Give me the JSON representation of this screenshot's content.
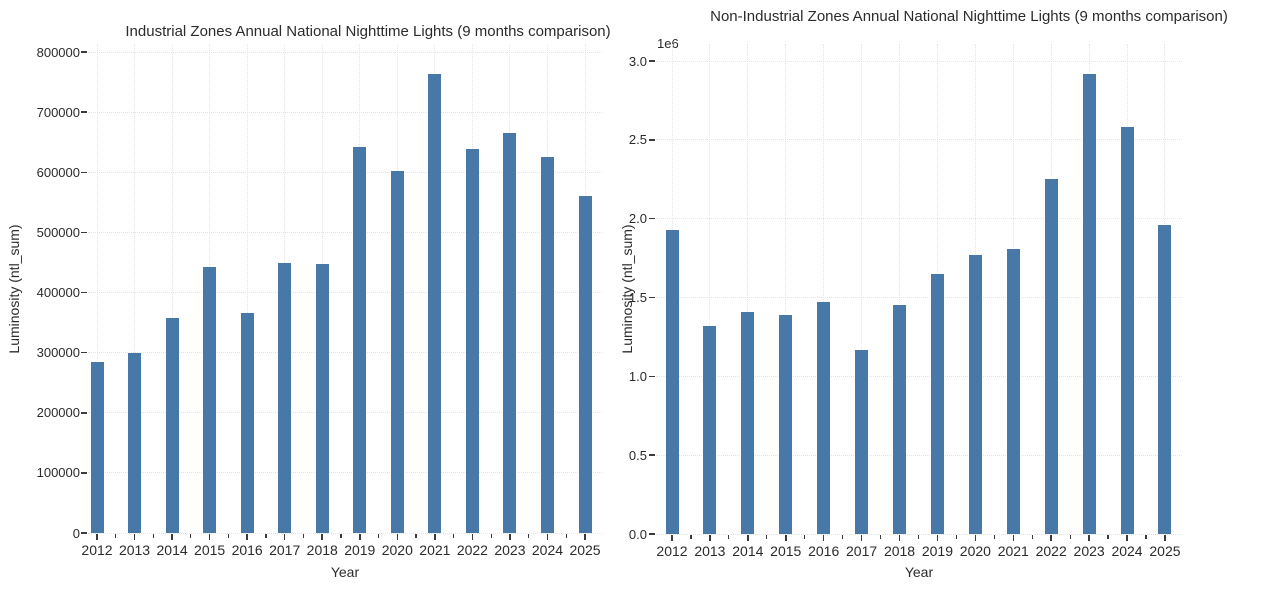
{
  "colors": {
    "background": "#ffffff",
    "bar": "#4878a8",
    "gridline": "#e4e4e4",
    "tick": "#3b3b3b",
    "text": "#2b2b2b"
  },
  "chart_data": [
    {
      "type": "bar",
      "title": "Industrial Zones Annual National Nighttime Lights (9 months comparison)",
      "xlabel": "Year",
      "ylabel": "Luminosity (ntl_sum)",
      "categories": [
        "2012",
        "2013",
        "2014",
        "2015",
        "2016",
        "2017",
        "2018",
        "2019",
        "2020",
        "2021",
        "2022",
        "2023",
        "2024",
        "2025"
      ],
      "values": [
        284000,
        300000,
        358000,
        443000,
        366000,
        449000,
        447000,
        642000,
        602000,
        764000,
        638000,
        665000,
        625000,
        561000
      ],
      "ylim": [
        0,
        811000
      ],
      "yticks": [
        0,
        100000,
        200000,
        300000,
        400000,
        500000,
        600000,
        700000,
        800000
      ],
      "ytick_labels": [
        "0",
        "100000",
        "200000",
        "300000",
        "400000",
        "500000",
        "600000",
        "700000",
        "800000"
      ],
      "grid": "on",
      "legend": "none"
    },
    {
      "type": "bar",
      "title": "Non-Industrial Zones Annual National Nighttime Lights (9 months comparison)",
      "xlabel": "Year",
      "ylabel": "Luminosity (ntl_sum)",
      "offset_text": "1e6",
      "categories": [
        "2012",
        "2013",
        "2014",
        "2015",
        "2016",
        "2017",
        "2018",
        "2019",
        "2020",
        "2021",
        "2022",
        "2023",
        "2024",
        "2025"
      ],
      "values": [
        1930000,
        1320000,
        1410000,
        1390000,
        1470000,
        1170000,
        1450000,
        1650000,
        1770000,
        1810000,
        2250000,
        2920000,
        2580000,
        1960000
      ],
      "ylim": [
        0,
        3110000
      ],
      "yticks": [
        0,
        500000,
        1000000,
        1500000,
        2000000,
        2500000,
        3000000
      ],
      "ytick_labels": [
        "0.0",
        "0.5",
        "1.0",
        "1.5",
        "2.0",
        "2.5",
        "3.0"
      ],
      "grid": "on",
      "legend": "none"
    }
  ]
}
